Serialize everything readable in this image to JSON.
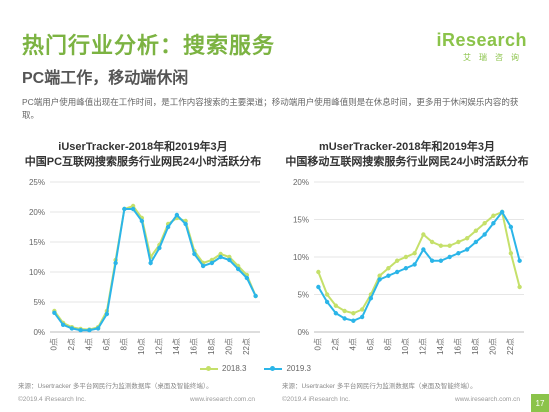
{
  "header": {
    "title": "热门行业分析：搜索服务",
    "subtitle": "PC端工作，移动端休闲",
    "logo_main": "iResearch",
    "logo_sub": "艾瑞咨询",
    "description": "PC端用户使用峰值出现在工作时间，是工作内容搜索的主要渠道；移动端用户使用峰值则是在休息时间，更多用于休闲娱乐内容的获取。"
  },
  "colors": {
    "series_2018": "#c5e06a",
    "series_2019": "#2bb5e8",
    "accent": "#8bc34a"
  },
  "legend": {
    "s2018": "2018.3",
    "s2019": "2019.3"
  },
  "chart_data": [
    {
      "type": "line",
      "title_line1": "iUserTracker-2018年和2019年3月",
      "title_line2": "中国PC互联网搜索服务行业网民24小时活跃分布",
      "categories": [
        "0点",
        "1点",
        "2点",
        "3点",
        "4点",
        "5点",
        "6点",
        "7点",
        "8点",
        "9点",
        "10点",
        "11点",
        "12点",
        "13点",
        "14点",
        "15点",
        "16点",
        "17点",
        "18点",
        "19点",
        "20点",
        "21点",
        "22点",
        "23点"
      ],
      "x_tick_labels": [
        "0点",
        "2点",
        "4点",
        "6点",
        "8点",
        "10点",
        "12点",
        "14点",
        "16点",
        "18点",
        "20点",
        "22点"
      ],
      "ylim": [
        0,
        25
      ],
      "y_ticks": [
        "0%",
        "5%",
        "10%",
        "15%",
        "20%",
        "25%"
      ],
      "series": [
        {
          "name": "2018.3",
          "values": [
            3.5,
            1.5,
            0.8,
            0.5,
            0.4,
            0.8,
            3.5,
            12,
            20.5,
            21,
            19,
            12.5,
            14.5,
            18,
            19,
            18.5,
            13.5,
            11.5,
            12,
            13,
            12.5,
            11,
            9.5,
            6
          ]
        },
        {
          "name": "2019.3",
          "values": [
            3.2,
            1.2,
            0.6,
            0.3,
            0.3,
            0.6,
            3,
            11.5,
            20.5,
            20.5,
            18.5,
            11.5,
            14,
            17.5,
            19.5,
            18,
            13,
            11,
            11.5,
            12.5,
            12,
            10.5,
            9,
            6
          ]
        }
      ]
    },
    {
      "type": "line",
      "title_line1": "mUserTracker-2018年和2019年3月",
      "title_line2": "中国移动互联网搜索服务行业网民24小时活跃分布",
      "categories": [
        "0点",
        "1点",
        "2点",
        "3点",
        "4点",
        "5点",
        "6点",
        "7点",
        "8点",
        "9点",
        "10点",
        "11点",
        "12点",
        "13点",
        "14点",
        "15点",
        "16点",
        "17点",
        "18点",
        "19点",
        "20点",
        "21点",
        "22点",
        "23点"
      ],
      "x_tick_labels": [
        "0点",
        "2点",
        "4点",
        "6点",
        "8点",
        "10点",
        "12点",
        "14点",
        "16点",
        "18点",
        "20点",
        "22点"
      ],
      "ylim": [
        0,
        20
      ],
      "y_ticks": [
        "0%",
        "5%",
        "10%",
        "15%",
        "20%"
      ],
      "series": [
        {
          "name": "2018.3",
          "values": [
            8,
            5,
            3.5,
            2.8,
            2.5,
            3,
            5,
            7.5,
            8.5,
            9.5,
            10,
            10.5,
            13,
            12,
            11.5,
            11.5,
            12,
            12.5,
            13.5,
            14.5,
            15.5,
            16,
            10.5,
            6
          ]
        },
        {
          "name": "2019.3",
          "values": [
            6,
            4,
            2.5,
            1.8,
            1.5,
            2,
            4.5,
            7,
            7.5,
            8,
            8.5,
            9,
            11,
            9.5,
            9.5,
            10,
            10.5,
            11,
            12,
            13,
            14.5,
            16,
            14,
            9.5
          ]
        }
      ]
    }
  ],
  "source": "来源：Usertracker 多平台网民行为监测数据库（桌面及智能终端）。",
  "footer": {
    "copyright": "©2019.4 iResearch Inc.",
    "url": "www.iresearch.com.cn",
    "page": "17"
  }
}
